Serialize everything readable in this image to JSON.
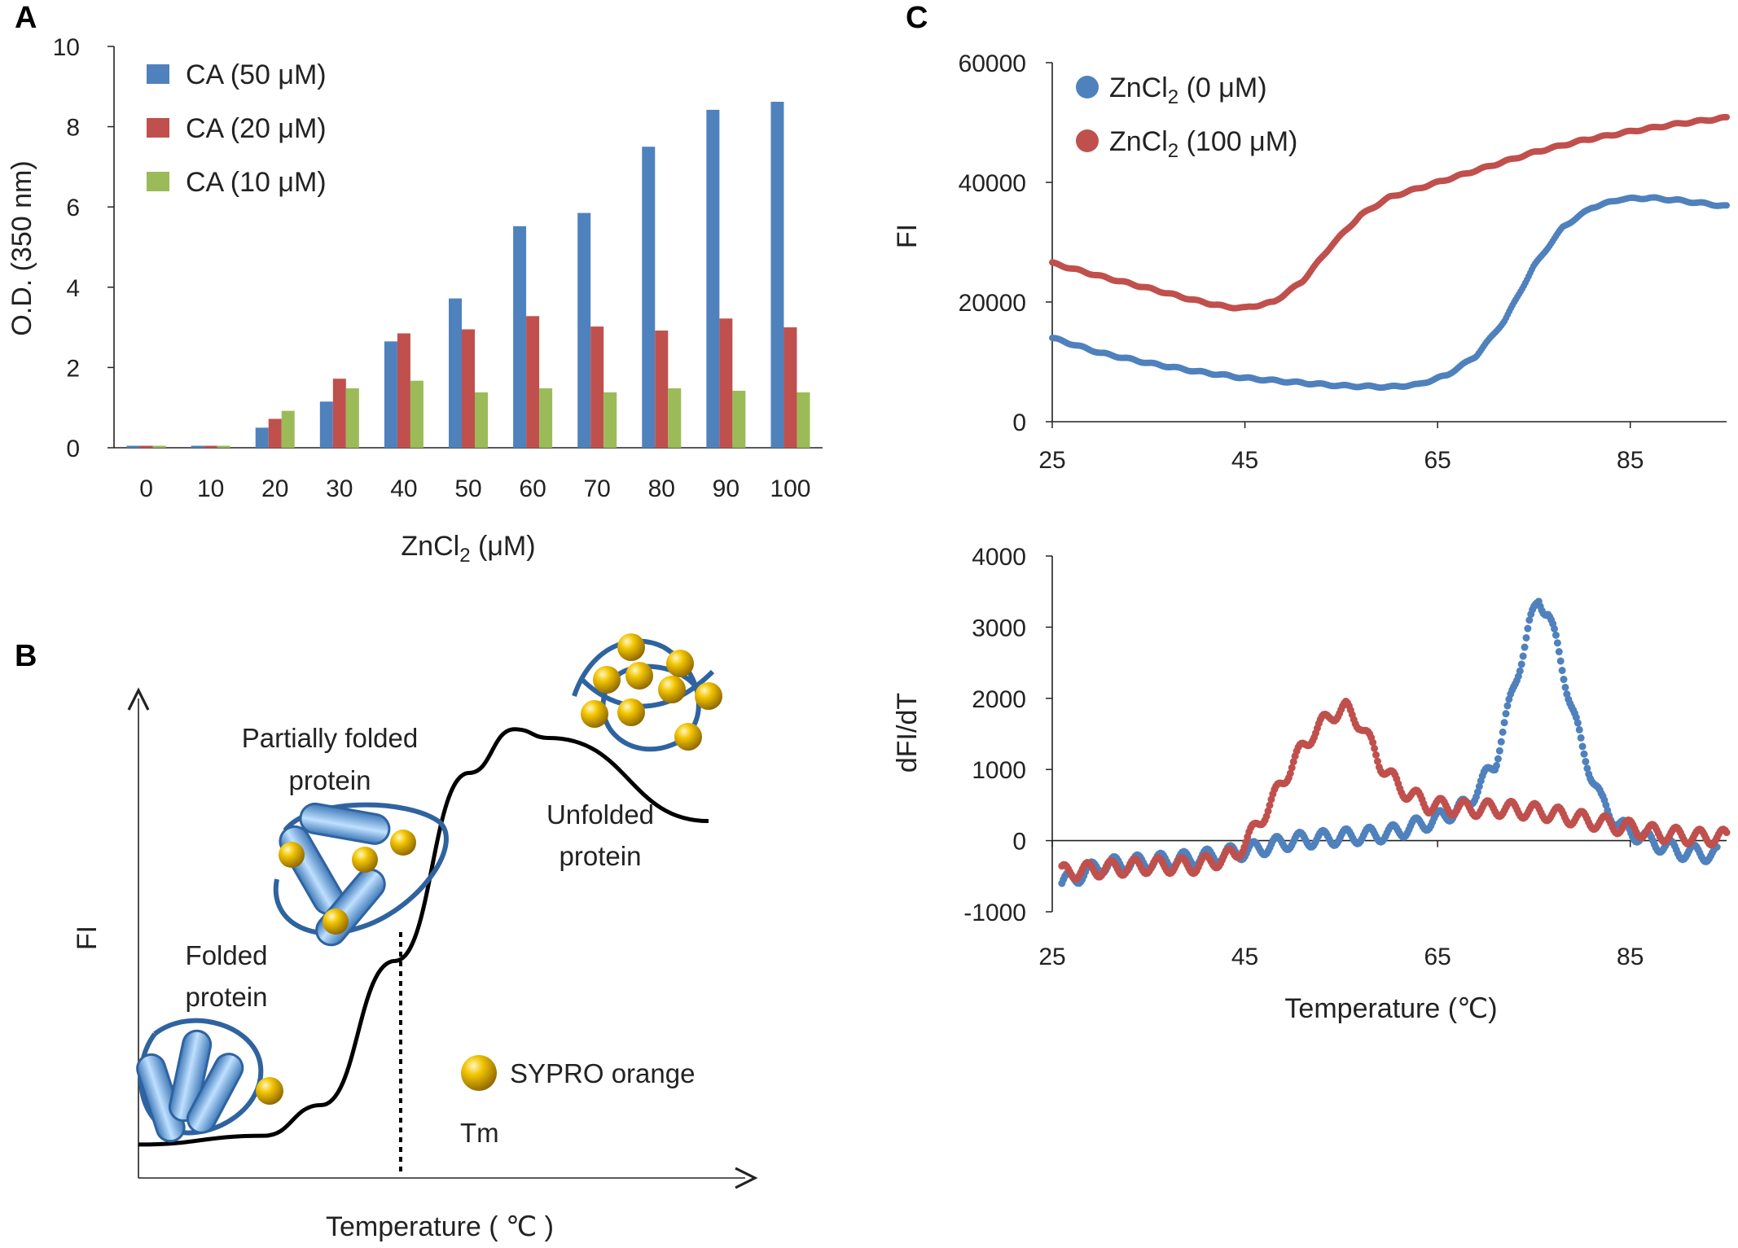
{
  "panels": {
    "a": "A",
    "b": "B",
    "c": "C"
  },
  "colors": {
    "blue": "#4F81BD",
    "red": "#C0504D",
    "green": "#9BBB59",
    "gold": "#D9A400",
    "protein": "#6FA8DC",
    "axis": "#222222"
  },
  "chart_data": [
    {
      "id": "A",
      "type": "bar",
      "xlabel_main": "ZnCl",
      "xlabel_sub": "2",
      "xlabel_tail": " (μM)",
      "ylabel": "O.D. (350 nm)",
      "ylim": [
        0,
        10
      ],
      "yticks": [
        "0",
        "2",
        "4",
        "6",
        "8",
        "10"
      ],
      "categories": [
        "0",
        "10",
        "20",
        "30",
        "40",
        "50",
        "60",
        "70",
        "80",
        "90",
        "100"
      ],
      "legend_position": "top-left",
      "series": [
        {
          "name": "CA (50 μM)",
          "color": "#4F81BD",
          "values": [
            0.05,
            0.05,
            0.5,
            1.15,
            2.65,
            3.72,
            5.52,
            5.85,
            7.5,
            8.42,
            8.62
          ]
        },
        {
          "name": "CA (20 μM)",
          "color": "#C0504D",
          "values": [
            0.05,
            0.05,
            0.72,
            1.72,
            2.85,
            2.95,
            3.28,
            3.02,
            2.92,
            3.22,
            3.0
          ]
        },
        {
          "name": "CA (10 μM)",
          "color": "#9BBB59",
          "values": [
            0.05,
            0.05,
            0.92,
            1.48,
            1.67,
            1.38,
            1.48,
            1.38,
            1.48,
            1.42,
            1.38
          ]
        }
      ]
    },
    {
      "id": "B",
      "type": "line",
      "schematic": true,
      "xlabel": "Temperature ( ℃ )",
      "ylabel": "FI",
      "curve": {
        "x": [
          0,
          0.22,
          0.32,
          0.45,
          0.58,
          0.66,
          0.72,
          1.0
        ],
        "y": [
          0.03,
          0.05,
          0.12,
          0.45,
          0.88,
          0.98,
          0.96,
          0.77
        ]
      },
      "tm_x": 0.46,
      "annotations": {
        "folded_line1": "Folded",
        "folded_line2": "protein",
        "partial_line1": "Partially folded",
        "partial_line2": "protein",
        "unfolded_line1": "Unfolded",
        "unfolded_line2": "protein",
        "tm": "Tm",
        "legend": "SYPRO orange"
      }
    },
    {
      "id": "C-top",
      "type": "scatter",
      "ylabel": "FI",
      "xlim": [
        25,
        95
      ],
      "ylim": [
        0,
        60000
      ],
      "xticks": [
        "25",
        "45",
        "65",
        "85"
      ],
      "yticks": [
        "0",
        "20000",
        "40000",
        "60000"
      ],
      "legend_position": "top-left",
      "series": [
        {
          "name_main": "ZnCl",
          "name_sub": "2",
          "name_tail": " (0 μM)",
          "color": "#4F81BD",
          "points": [
            [
              25,
              14000
            ],
            [
              30,
              11500
            ],
            [
              35,
              9800
            ],
            [
              40,
              8400
            ],
            [
              45,
              7300
            ],
            [
              50,
              6600
            ],
            [
              55,
              6000
            ],
            [
              60,
              5800
            ],
            [
              63,
              6200
            ],
            [
              66,
              7800
            ],
            [
              69,
              11000
            ],
            [
              72,
              17000
            ],
            [
              75,
              26000
            ],
            [
              78,
              32500
            ],
            [
              81,
              35800
            ],
            [
              84,
              37200
            ],
            [
              87,
              37400
            ],
            [
              90,
              37000
            ],
            [
              93,
              36400
            ],
            [
              95,
              36000
            ]
          ]
        },
        {
          "name_main": "ZnCl",
          "name_sub": "2",
          "name_tail": " (100 μM)",
          "color": "#C0504D",
          "points": [
            [
              25,
              26500
            ],
            [
              30,
              24300
            ],
            [
              35,
              22300
            ],
            [
              40,
              20200
            ],
            [
              43,
              19200
            ],
            [
              45,
              19000
            ],
            [
              48,
              20000
            ],
            [
              51,
              23500
            ],
            [
              54,
              29500
            ],
            [
              57,
              34500
            ],
            [
              60,
              37500
            ],
            [
              65,
              40000
            ],
            [
              70,
              42500
            ],
            [
              75,
              45000
            ],
            [
              80,
              47000
            ],
            [
              85,
              48500
            ],
            [
              90,
              49800
            ],
            [
              95,
              50800
            ]
          ]
        }
      ]
    },
    {
      "id": "C-bottom",
      "type": "scatter",
      "xlabel": "Temperature (℃)",
      "ylabel": "dFI/dT",
      "xlim": [
        25,
        95
      ],
      "ylim": [
        -1000,
        4000
      ],
      "xticks": [
        "25",
        "45",
        "65",
        "85"
      ],
      "yticks": [
        "-1000",
        "0",
        "1000",
        "2000",
        "3000",
        "4000"
      ],
      "series": [
        {
          "name": "ZnCl2 (0 μM)",
          "color": "#4F81BD",
          "points": [
            [
              26,
              -600
            ],
            [
              30,
              -350
            ],
            [
              35,
              -300
            ],
            [
              40,
              -250
            ],
            [
              45,
              -150
            ],
            [
              50,
              0
            ],
            [
              55,
              50
            ],
            [
              60,
              100
            ],
            [
              65,
              300
            ],
            [
              68,
              500
            ],
            [
              71,
              1100
            ],
            [
              73,
              2200
            ],
            [
              74.5,
              3000
            ],
            [
              75.5,
              3400
            ],
            [
              76.5,
              3200
            ],
            [
              78,
              2400
            ],
            [
              80,
              1300
            ],
            [
              82,
              550
            ],
            [
              84,
              200
            ],
            [
              87,
              0
            ],
            [
              90,
              -150
            ],
            [
              94,
              -200
            ]
          ]
        },
        {
          "name": "ZnCl2 (100 μM)",
          "color": "#C0504D",
          "points": [
            [
              26,
              -450
            ],
            [
              30,
              -400
            ],
            [
              35,
              -350
            ],
            [
              40,
              -350
            ],
            [
              44,
              -200
            ],
            [
              46,
              150
            ],
            [
              48,
              600
            ],
            [
              50,
              1100
            ],
            [
              52,
              1500
            ],
            [
              54,
              1780
            ],
            [
              55.5,
              1850
            ],
            [
              57,
              1650
            ],
            [
              59,
              1100
            ],
            [
              61,
              750
            ],
            [
              64,
              500
            ],
            [
              68,
              450
            ],
            [
              72,
              450
            ],
            [
              76,
              400
            ],
            [
              80,
              300
            ],
            [
              84,
              200
            ],
            [
              88,
              100
            ],
            [
              92,
              50
            ],
            [
              95,
              50
            ]
          ]
        }
      ]
    }
  ]
}
